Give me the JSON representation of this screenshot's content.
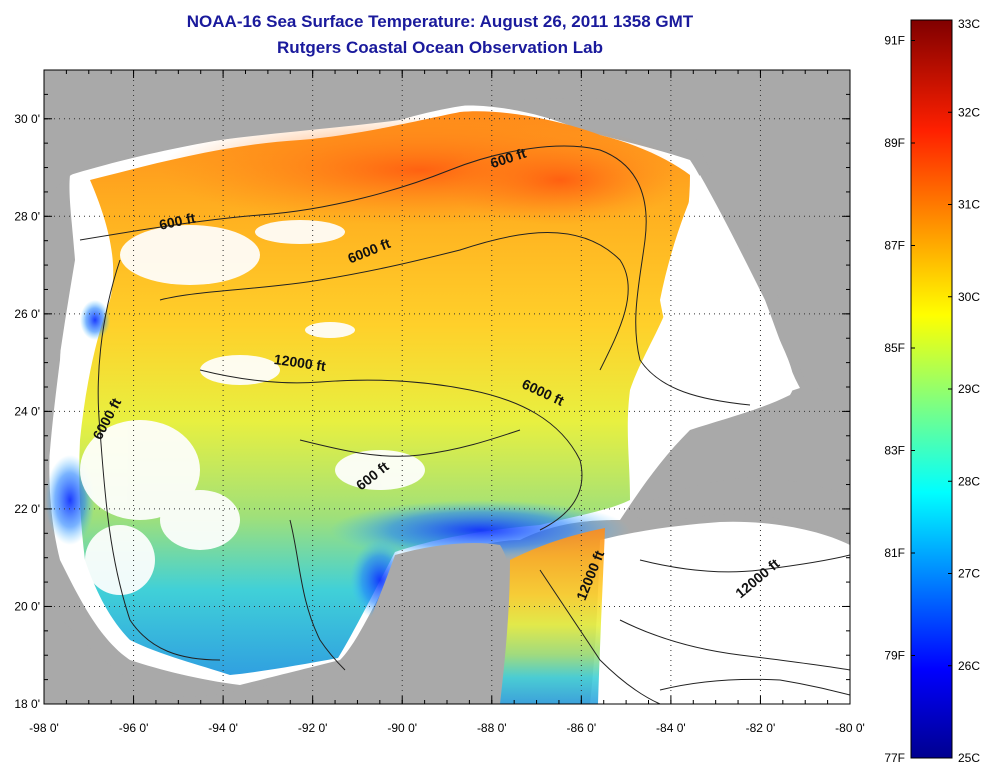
{
  "title": {
    "line1": "NOAA-16 Sea Surface Temperature:  August 26, 2011 1358 GMT",
    "line2": "Rutgers Coastal Ocean Observation Lab"
  },
  "axes": {
    "lon_ticks": [
      "-98 0'",
      "-96 0'",
      "-94 0'",
      "-92 0'",
      "-90 0'",
      "-88 0'",
      "-86 0'",
      "-84 0'",
      "-82 0'",
      "-80 0'"
    ],
    "lat_ticks": [
      "18 0'",
      "20 0'",
      "22 0'",
      "24 0'",
      "26 0'",
      "28 0'",
      "30 0'"
    ],
    "lon_range": [
      -98,
      -80
    ],
    "lat_range": [
      18,
      31
    ]
  },
  "contour_labels": [
    {
      "text": "600 ft",
      "lon": -87.6,
      "lat": 29.1,
      "angle": -18
    },
    {
      "text": "600 ft",
      "lon": -95.0,
      "lat": 27.8,
      "angle": -12
    },
    {
      "text": "6000 ft",
      "lon": -90.7,
      "lat": 27.2,
      "angle": -22
    },
    {
      "text": "12000 ft",
      "lon": -92.3,
      "lat": 24.9,
      "angle": 8
    },
    {
      "text": "6000 ft",
      "lon": -86.9,
      "lat": 24.3,
      "angle": 25
    },
    {
      "text": "6000 ft",
      "lon": -96.5,
      "lat": 23.8,
      "angle": -62
    },
    {
      "text": "600 ft",
      "lon": -90.6,
      "lat": 22.6,
      "angle": -38
    },
    {
      "text": "12000 ft",
      "lon": -85.7,
      "lat": 20.6,
      "angle": -68
    },
    {
      "text": "12000 ft",
      "lon": -82.0,
      "lat": 20.5,
      "angle": -40
    }
  ],
  "colorbar": {
    "celsius_labels": [
      "33C",
      "32C",
      "31C",
      "30C",
      "29C",
      "28C",
      "27C",
      "26C",
      "25C"
    ],
    "fahrenheit_labels": [
      "91F",
      "89F",
      "87F",
      "85F",
      "83F",
      "81F",
      "79F",
      "77F"
    ],
    "celsius_range": [
      25,
      33
    ],
    "fahrenheit_range": [
      77,
      91.4
    ]
  },
  "colors": {
    "land": "#a9a9a9",
    "cloud": "#ffffff",
    "title": "#1a1a9c"
  }
}
